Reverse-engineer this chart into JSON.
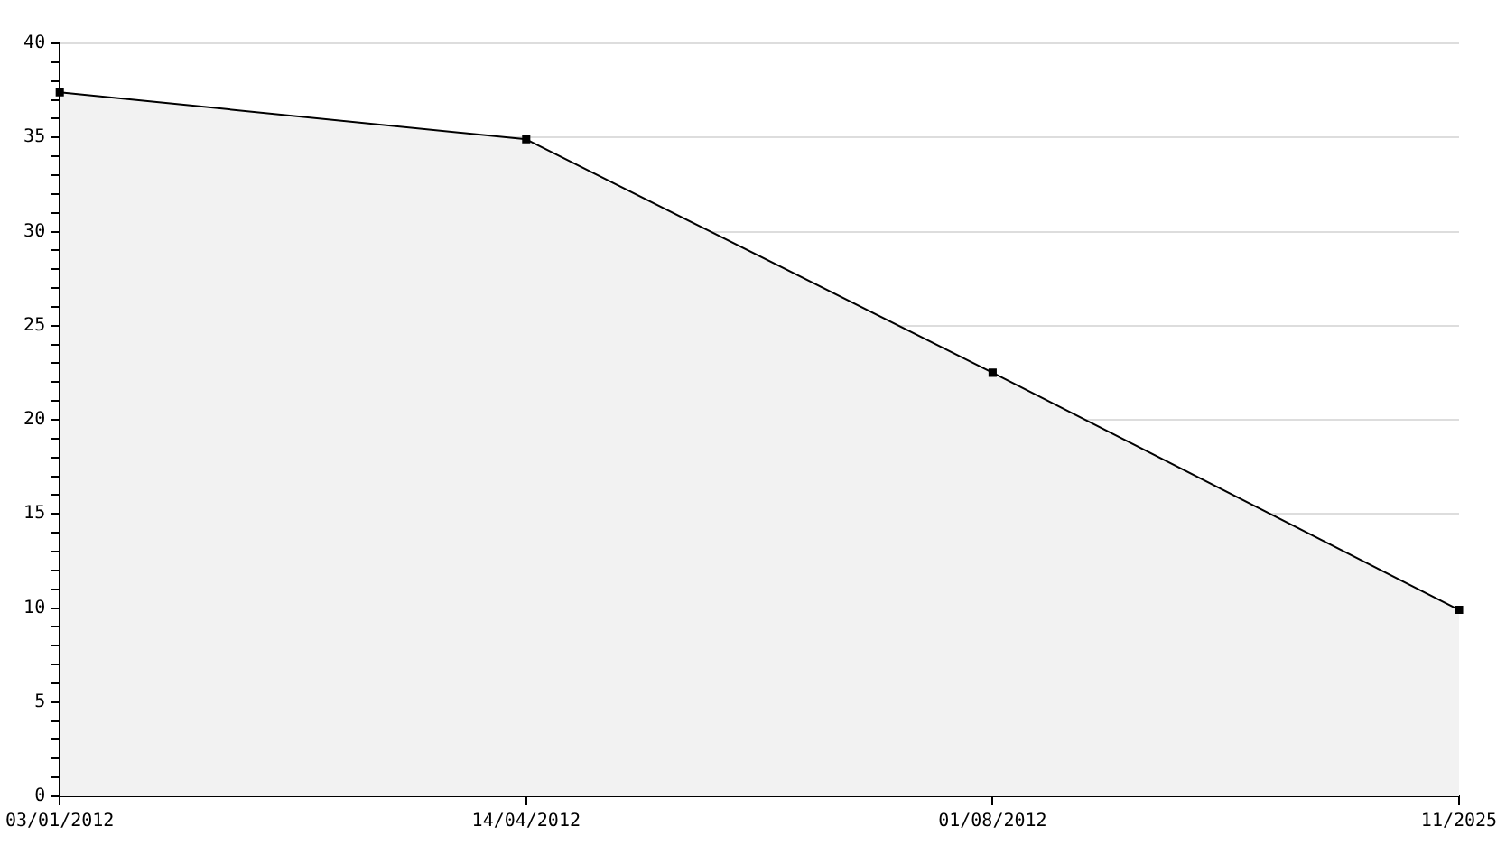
{
  "chart_data": {
    "type": "area",
    "categories": [
      "03/01/2012",
      "14/04/2012",
      "01/08/2012",
      "11/2025"
    ],
    "series": [
      {
        "color": "#000000",
        "values": [
          37.4,
          34.9,
          22.5,
          9.9
        ]
      }
    ],
    "ylim": [
      0,
      40
    ],
    "yticks": [
      0,
      {
        "value": 1,
        "label": null
      },
      {
        "value": 2,
        "label": null
      },
      {
        "value": 3,
        "label": null
      },
      {
        "value": 4,
        "label": null
      },
      5,
      {
        "value": 6,
        "label": null
      },
      {
        "value": 7,
        "label": null
      },
      {
        "value": 8,
        "label": null
      },
      {
        "value": 9,
        "label": null
      },
      10,
      {
        "value": 11,
        "label": null
      },
      {
        "value": 12,
        "label": null
      },
      {
        "value": 13,
        "label": null
      },
      {
        "value": 14,
        "label": null
      },
      15,
      {
        "value": 16,
        "label": null
      },
      {
        "value": 17,
        "label": null
      },
      {
        "value": 18,
        "label": null
      },
      {
        "value": 19,
        "label": null
      },
      20,
      {
        "value": 21,
        "label": null
      },
      {
        "value": 22,
        "label": null
      },
      {
        "value": 23,
        "label": null
      },
      {
        "value": 24,
        "label": null
      },
      25,
      {
        "value": 26,
        "label": null
      },
      {
        "value": 27,
        "label": null
      },
      {
        "value": 28,
        "label": null
      },
      {
        "value": 29,
        "label": null
      },
      30,
      {
        "value": 31,
        "label": null
      },
      {
        "value": 32,
        "label": null
      },
      {
        "value": 33,
        "label": null
      },
      {
        "value": 34,
        "label": null
      },
      35,
      {
        "value": 36,
        "label": null
      },
      {
        "value": 37,
        "label": null
      },
      {
        "value": 38,
        "label": null
      },
      {
        "value": 39,
        "label": null
      },
      40
    ],
    "grid": "y",
    "legend": false,
    "marker": "square",
    "line_style": "solid"
  }
}
